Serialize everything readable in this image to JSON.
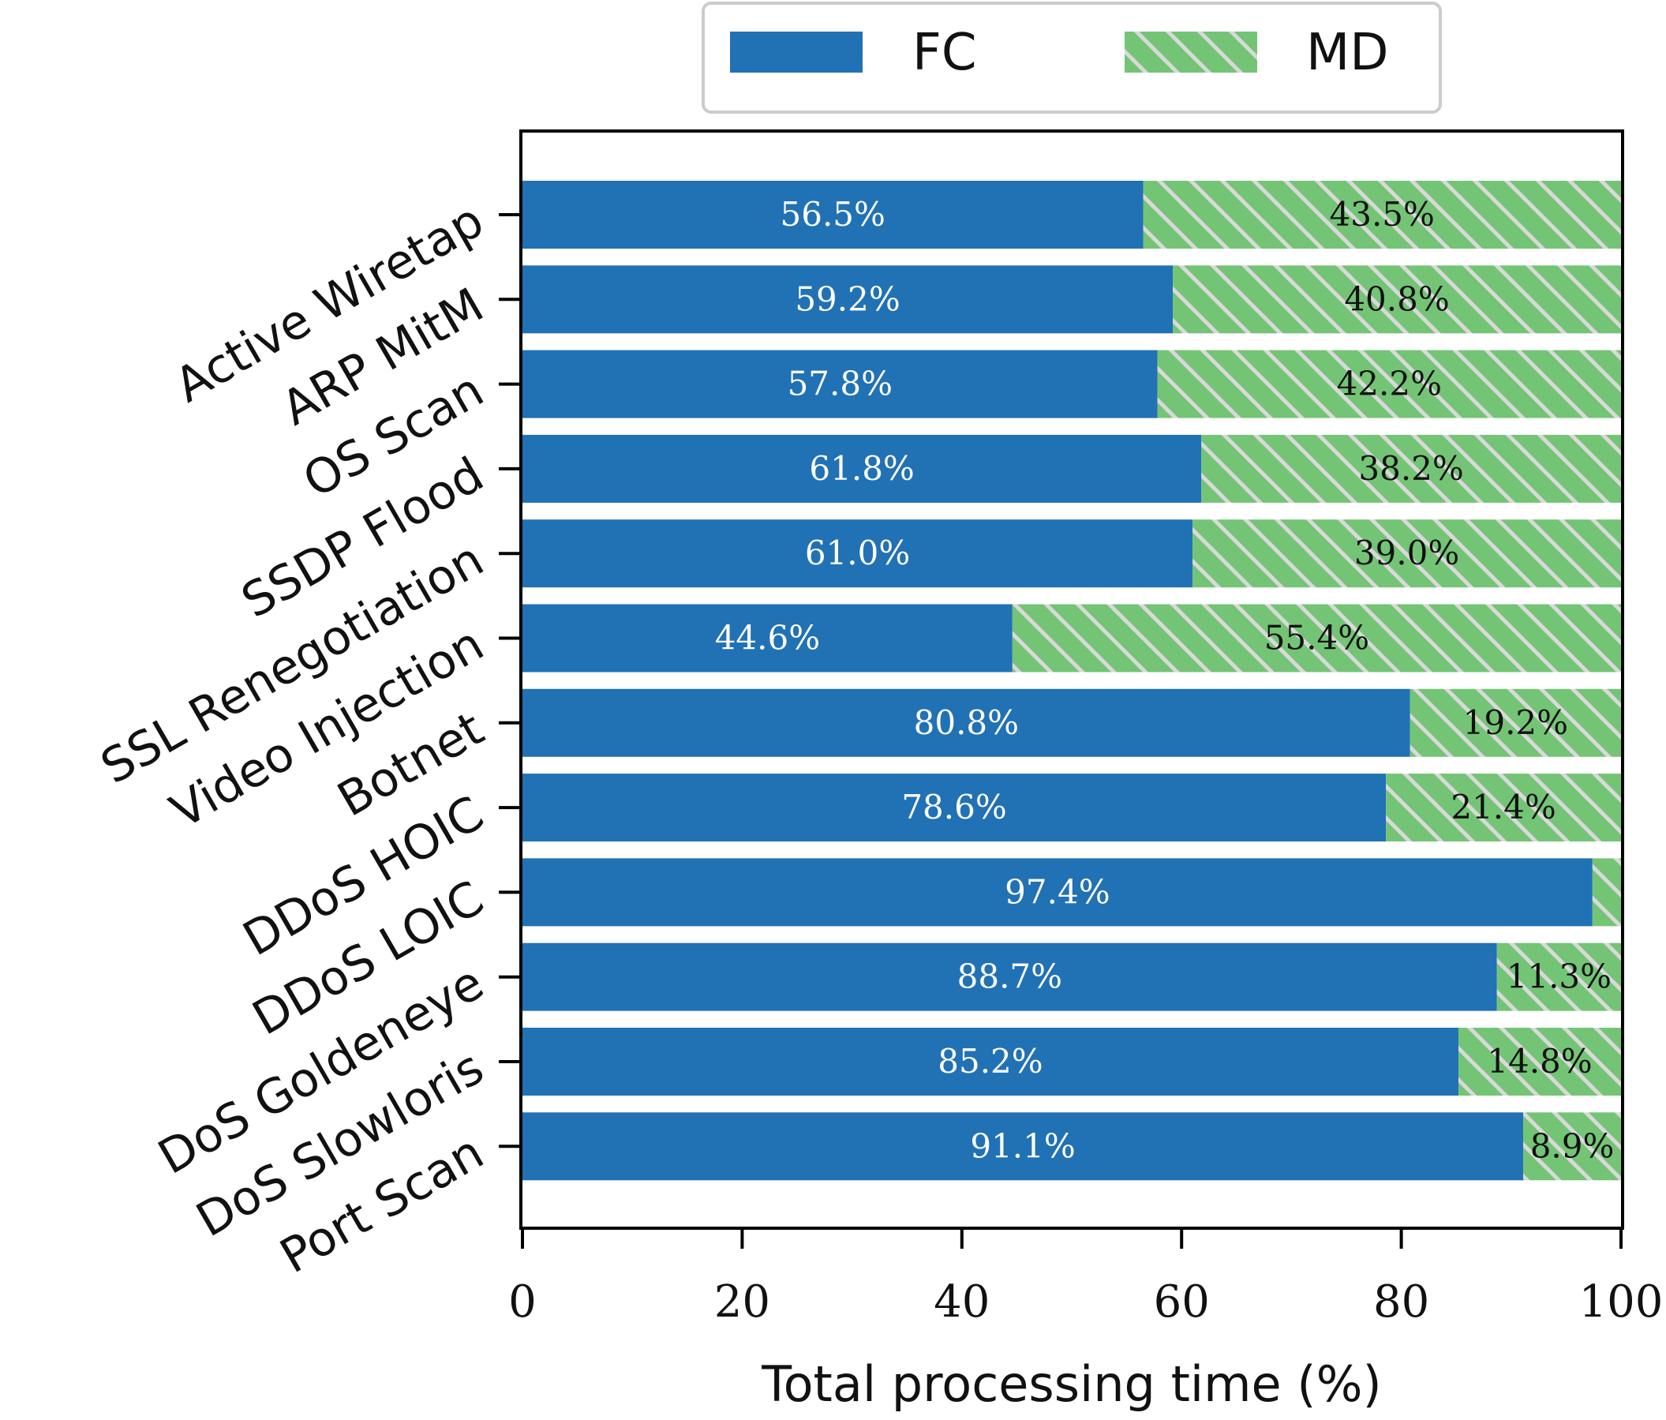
{
  "chart_data": {
    "type": "bar",
    "orientation": "horizontal",
    "stacked": true,
    "categories": [
      "Active Wiretap",
      "ARP MitM",
      "OS Scan",
      "SSDP Flood",
      "SSL Renegotiation",
      "Video Injection",
      "Botnet",
      "DDoS HOIC",
      "DDoS LOIC",
      "DoS Goldeneye",
      "DoS Slowloris",
      "Port Scan"
    ],
    "series": [
      {
        "name": "FC",
        "color": "#2171b5",
        "values": [
          56.5,
          59.2,
          57.8,
          61.8,
          61.0,
          44.6,
          80.8,
          78.6,
          97.4,
          88.7,
          85.2,
          91.1
        ],
        "labels": [
          "56.5%",
          "59.2%",
          "57.8%",
          "61.8%",
          "61.0%",
          "44.6%",
          "80.8%",
          "78.6%",
          "97.4%",
          "88.7%",
          "85.2%",
          "91.1%"
        ]
      },
      {
        "name": "MD",
        "color": "#74c476",
        "hatch": "diagonal",
        "values": [
          43.5,
          40.8,
          42.2,
          38.2,
          39.0,
          55.4,
          19.2,
          21.4,
          2.6,
          11.3,
          14.8,
          8.9
        ],
        "labels": [
          "43.5%",
          "40.8%",
          "42.2%",
          "38.2%",
          "39.0%",
          "55.4%",
          "19.2%",
          "21.4%",
          "",
          "11.3%",
          "14.8%",
          "8.9%"
        ]
      }
    ],
    "xlabel": "Total processing time (%)",
    "ylabel": "",
    "xlim": [
      0,
      100
    ],
    "xticks": [
      "0",
      "20",
      "40",
      "60",
      "80",
      "100"
    ],
    "legend": {
      "position": "top-center",
      "entries": [
        "FC",
        "MD"
      ]
    },
    "grid": false
  }
}
